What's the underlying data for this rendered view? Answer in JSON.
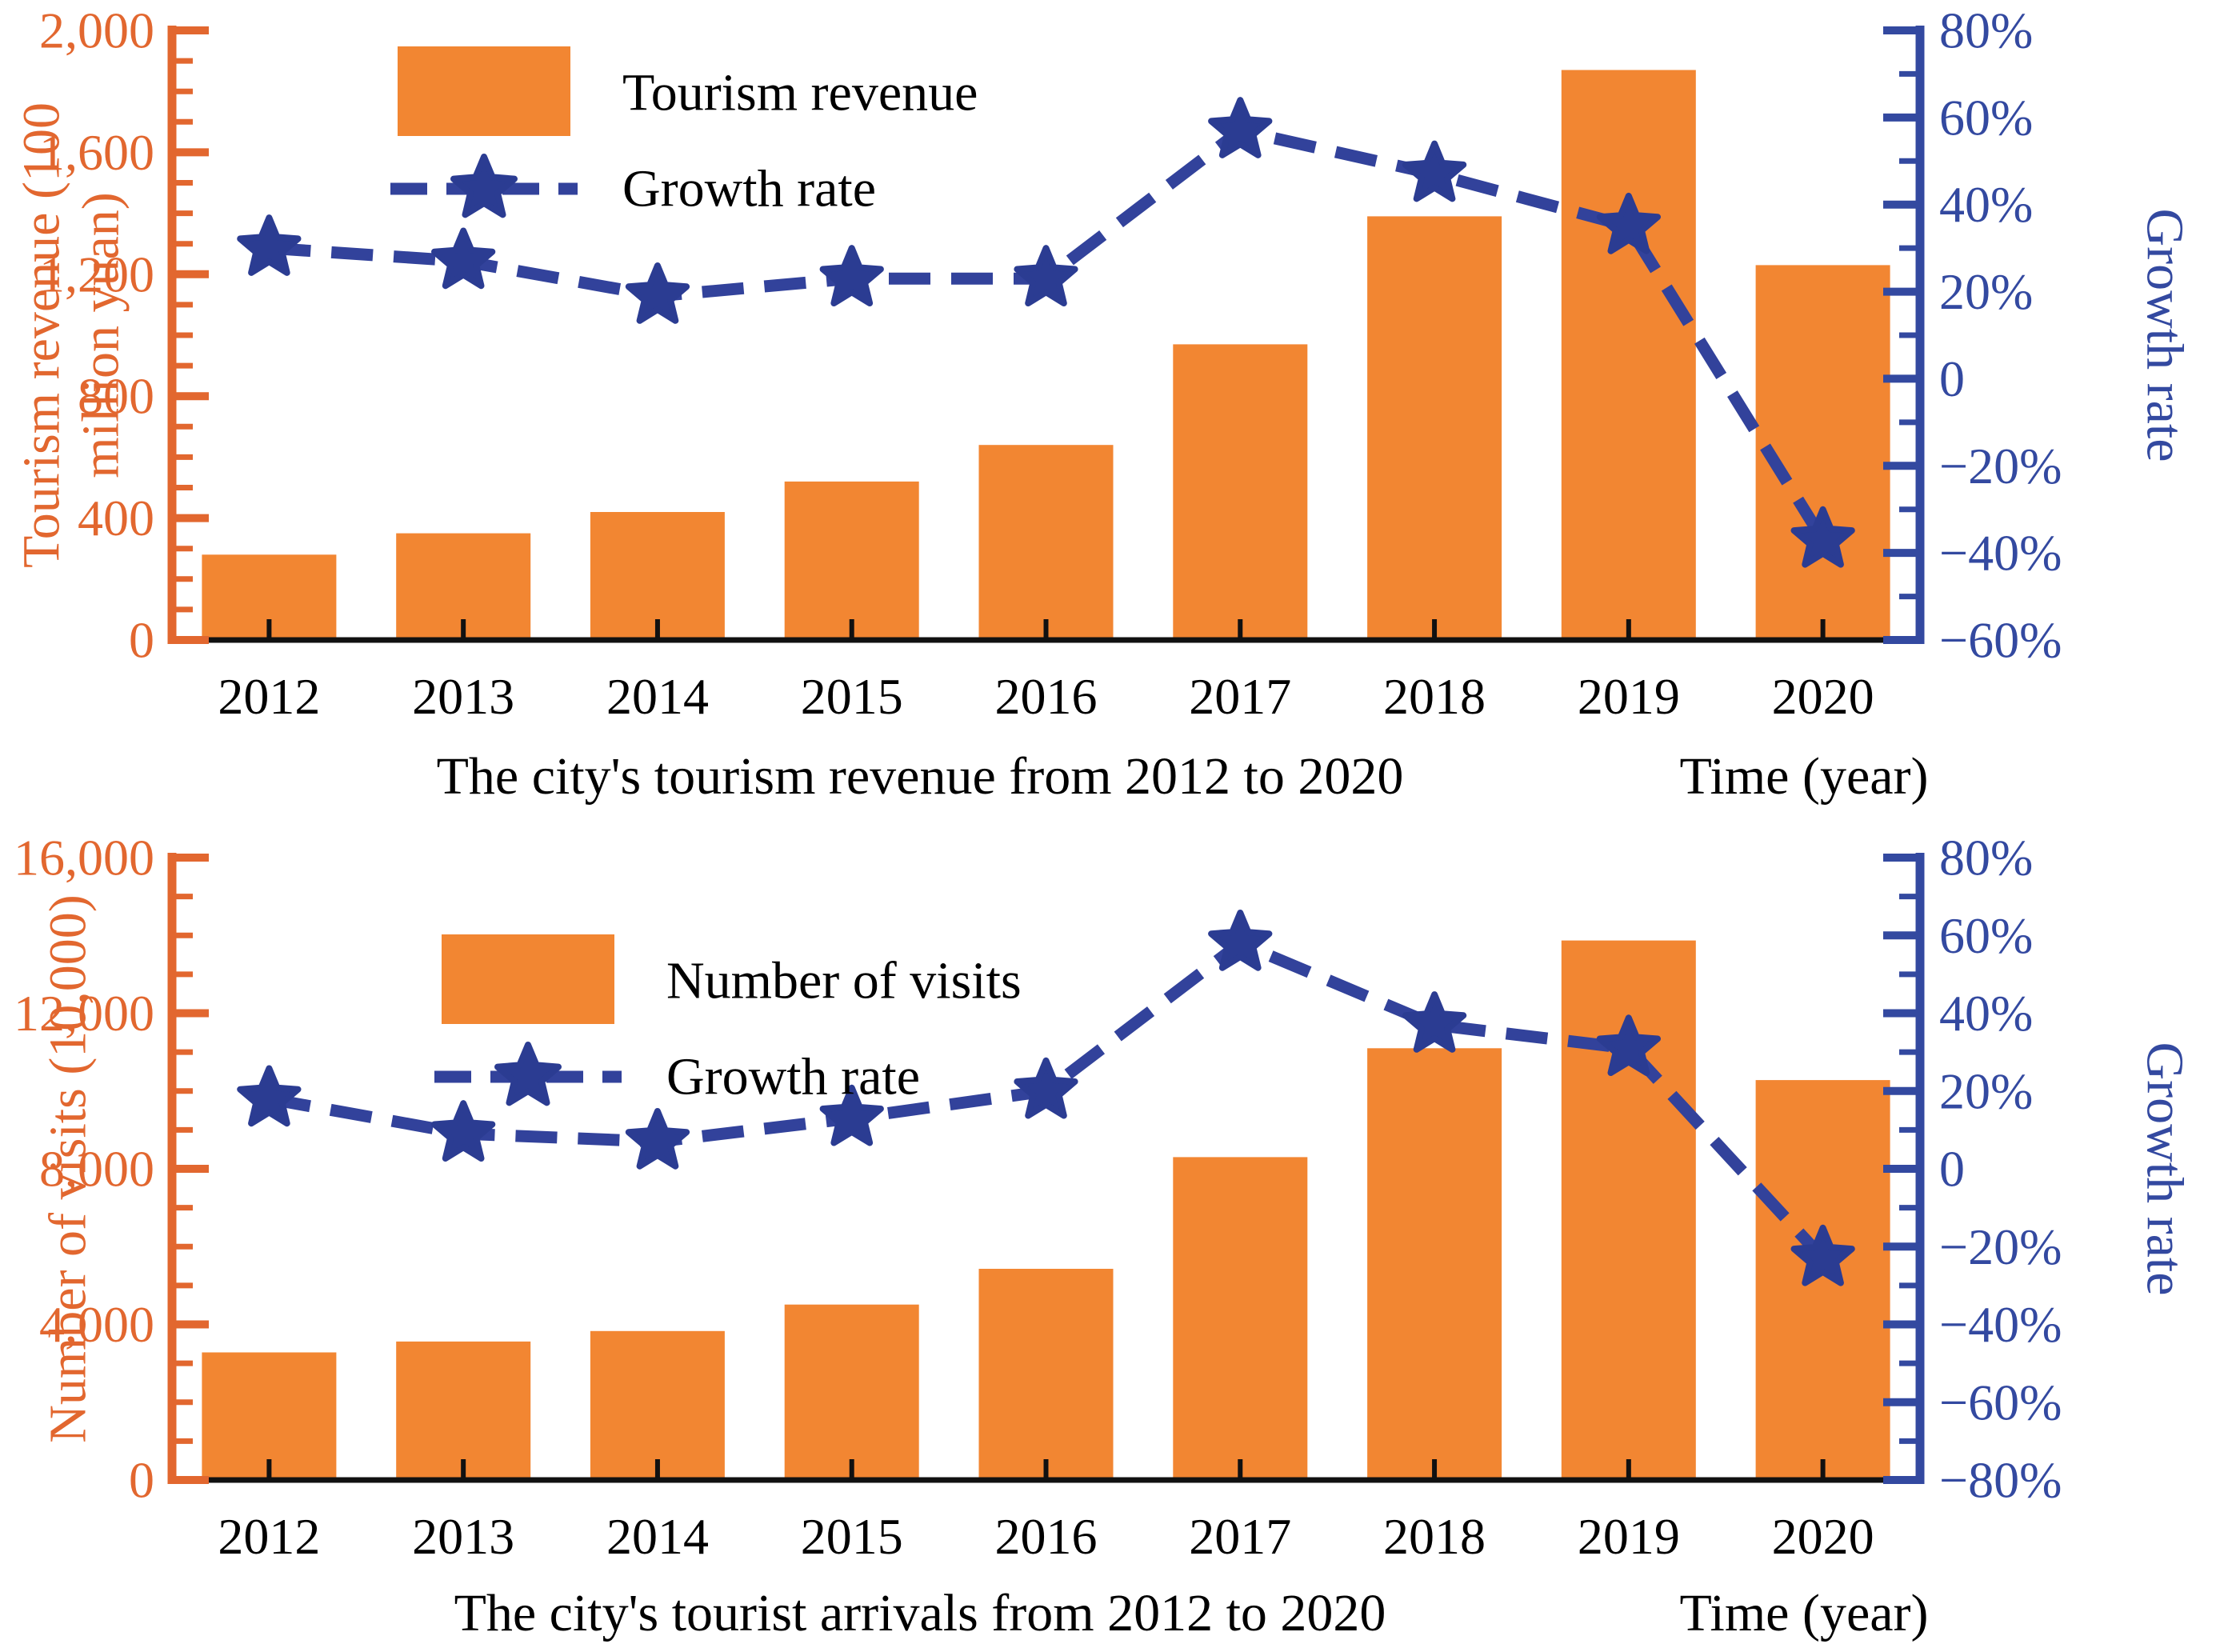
{
  "page": {
    "background": "#ffffff"
  },
  "colors": {
    "bar_orange": "#F28632",
    "orange_axis": "#E2672F",
    "blue_axis": "#3349A0",
    "blue_line": "#32429B",
    "star_blue": "#2B3C92",
    "text_black": "#000000",
    "baseline_black": "#111111"
  },
  "chart_data": [
    {
      "type": "bar+line",
      "caption": "The city's tourism revenue from 2012 to 2020",
      "xlabel": "Time (year)",
      "categories": [
        "2012",
        "2013",
        "2014",
        "2015",
        "2016",
        "2017",
        "2018",
        "2019",
        "2020"
      ],
      "series": [
        {
          "name": "Tourism revenue",
          "type": "bar",
          "axis": "left",
          "values": [
            280,
            350,
            420,
            520,
            640,
            970,
            1390,
            1870,
            1230
          ]
        },
        {
          "name": "Growth rate",
          "type": "line",
          "axis": "right",
          "unit": "%",
          "values": [
            30,
            27,
            19,
            23,
            23,
            57,
            47,
            35,
            -37
          ]
        }
      ],
      "left_axis": {
        "title_lines": [
          "Tourism revenue (100",
          "million yuan)"
        ],
        "range": [
          0,
          2000
        ],
        "major_step": 400,
        "minor_step": 100,
        "tick_labels": [
          "0",
          "400",
          "800",
          "1,200",
          "1,600",
          "2,000"
        ]
      },
      "right_axis": {
        "title": "Growth rate",
        "range": [
          -60,
          80
        ],
        "major_step": 20,
        "minor_step": 10,
        "tick_labels": [
          "−60%",
          "−40%",
          "−20%",
          "0",
          "20%",
          "40%",
          "60%",
          "80%"
        ]
      },
      "legend": [
        {
          "swatch": "bar",
          "label": "Tourism revenue"
        },
        {
          "swatch": "line-star",
          "label": "Growth rate"
        }
      ],
      "grid": false,
      "legend_position": "upper-left-inside"
    },
    {
      "type": "bar+line",
      "caption": "The city's tourist arrivals from 2012 to 2020",
      "xlabel": "Time (year)",
      "categories": [
        "2012",
        "2013",
        "2014",
        "2015",
        "2016",
        "2017",
        "2018",
        "2019",
        "2020"
      ],
      "series": [
        {
          "name": "Number of visits",
          "type": "bar",
          "axis": "left",
          "values": [
            3280,
            3560,
            3830,
            4510,
            5430,
            8300,
            11100,
            13870,
            10280
          ]
        },
        {
          "name": "Growth rate",
          "type": "line",
          "axis": "right",
          "unit": "%",
          "values": [
            18,
            9,
            7,
            13,
            20,
            58,
            37,
            31,
            -23
          ]
        }
      ],
      "left_axis": {
        "title_lines": [
          "Number of visits (10,000)"
        ],
        "range": [
          0,
          16000
        ],
        "major_step": 4000,
        "minor_step": 1000,
        "tick_labels": [
          "0",
          "4,000",
          "8,000",
          "12,000",
          "16,000"
        ]
      },
      "right_axis": {
        "title": "Growth rate",
        "range": [
          -80,
          80
        ],
        "major_step": 20,
        "minor_step": 10,
        "tick_labels": [
          "−80%",
          "−60%",
          "−40%",
          "−20%",
          "0",
          "20%",
          "40%",
          "60%",
          "80%"
        ]
      },
      "legend": [
        {
          "swatch": "bar",
          "label": "Number of visits"
        },
        {
          "swatch": "line-star",
          "label": "Growth rate"
        }
      ],
      "grid": false,
      "legend_position": "upper-left-inside"
    }
  ]
}
